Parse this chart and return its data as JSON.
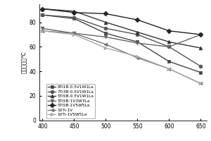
{
  "x": [
    400,
    450,
    500,
    550,
    600,
    650
  ],
  "series": [
    {
      "label": "9Ti1B-0.5V1W1La",
      "marker": "s",
      "color": "#444444",
      "values": [
        86,
        83,
        71,
        64,
        48,
        39
      ]
    },
    {
      "label": "7Ti3B-0.5V1W1La",
      "marker": "o",
      "color": "#555555",
      "values": [
        86,
        84,
        75,
        70,
        60,
        44
      ]
    },
    {
      "label": "5Ti5B-0.5V1W1La",
      "marker": "^",
      "color": "#333333",
      "values": [
        91,
        89,
        80,
        72,
        64,
        59
      ]
    },
    {
      "label": "5Ti5B-1V3W3La",
      "marker": "v",
      "color": "#666666",
      "values": [
        75,
        71,
        68,
        63,
        60,
        70
      ]
    },
    {
      "label": "5Ti5B-1V5W5La",
      "marker": "D",
      "color": "#222222",
      "values": [
        91,
        88,
        87,
        82,
        73,
        70
      ]
    },
    {
      "label": "10Ti-1V",
      "marker": "<",
      "color": "#777777",
      "values": [
        73,
        71,
        62,
        51,
        42,
        30
      ]
    },
    {
      "label": "10Ti-1V5W5La",
      "marker": ">",
      "color": "#aaaaaa",
      "values": [
        73,
        70,
        59,
        52,
        42,
        30
      ]
    }
  ],
  "xlim": [
    395,
    660
  ],
  "ylim": [
    0,
    95
  ],
  "xticks": [
    400,
    450,
    500,
    550,
    600,
    650
  ],
  "yticks": [
    0,
    20,
    40,
    60,
    80
  ],
  "background_color": "#ffffff",
  "linewidth": 1.0,
  "markersize": 3.5
}
